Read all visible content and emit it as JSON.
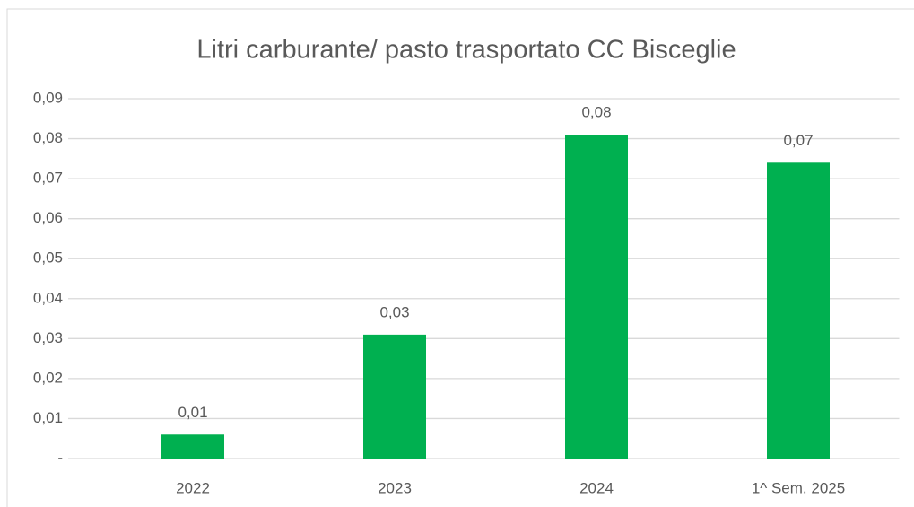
{
  "chart_data": {
    "type": "bar",
    "title": "Litri carburante/ pasto trasportato CC Bisceglie",
    "categories": [
      "2022",
      "2023",
      "2024",
      "1^ Sem. 2025"
    ],
    "values": [
      0.006,
      0.031,
      0.081,
      0.074
    ],
    "value_labels": [
      "0,01",
      "0,03",
      "0,08",
      "0,07"
    ],
    "color": "#00b050",
    "ylim": [
      0,
      0.09
    ],
    "yticks": [
      {
        "value": 0,
        "label": "-"
      },
      {
        "value": 0.01,
        "label": "0,01"
      },
      {
        "value": 0.02,
        "label": "0,02"
      },
      {
        "value": 0.03,
        "label": "0,03"
      },
      {
        "value": 0.04,
        "label": "0,04"
      },
      {
        "value": 0.05,
        "label": "0,05"
      },
      {
        "value": 0.06,
        "label": "0,06"
      },
      {
        "value": 0.07,
        "label": "0,07"
      },
      {
        "value": 0.08,
        "label": "0,08"
      },
      {
        "value": 0.09,
        "label": "0,09"
      }
    ],
    "grid": true
  }
}
